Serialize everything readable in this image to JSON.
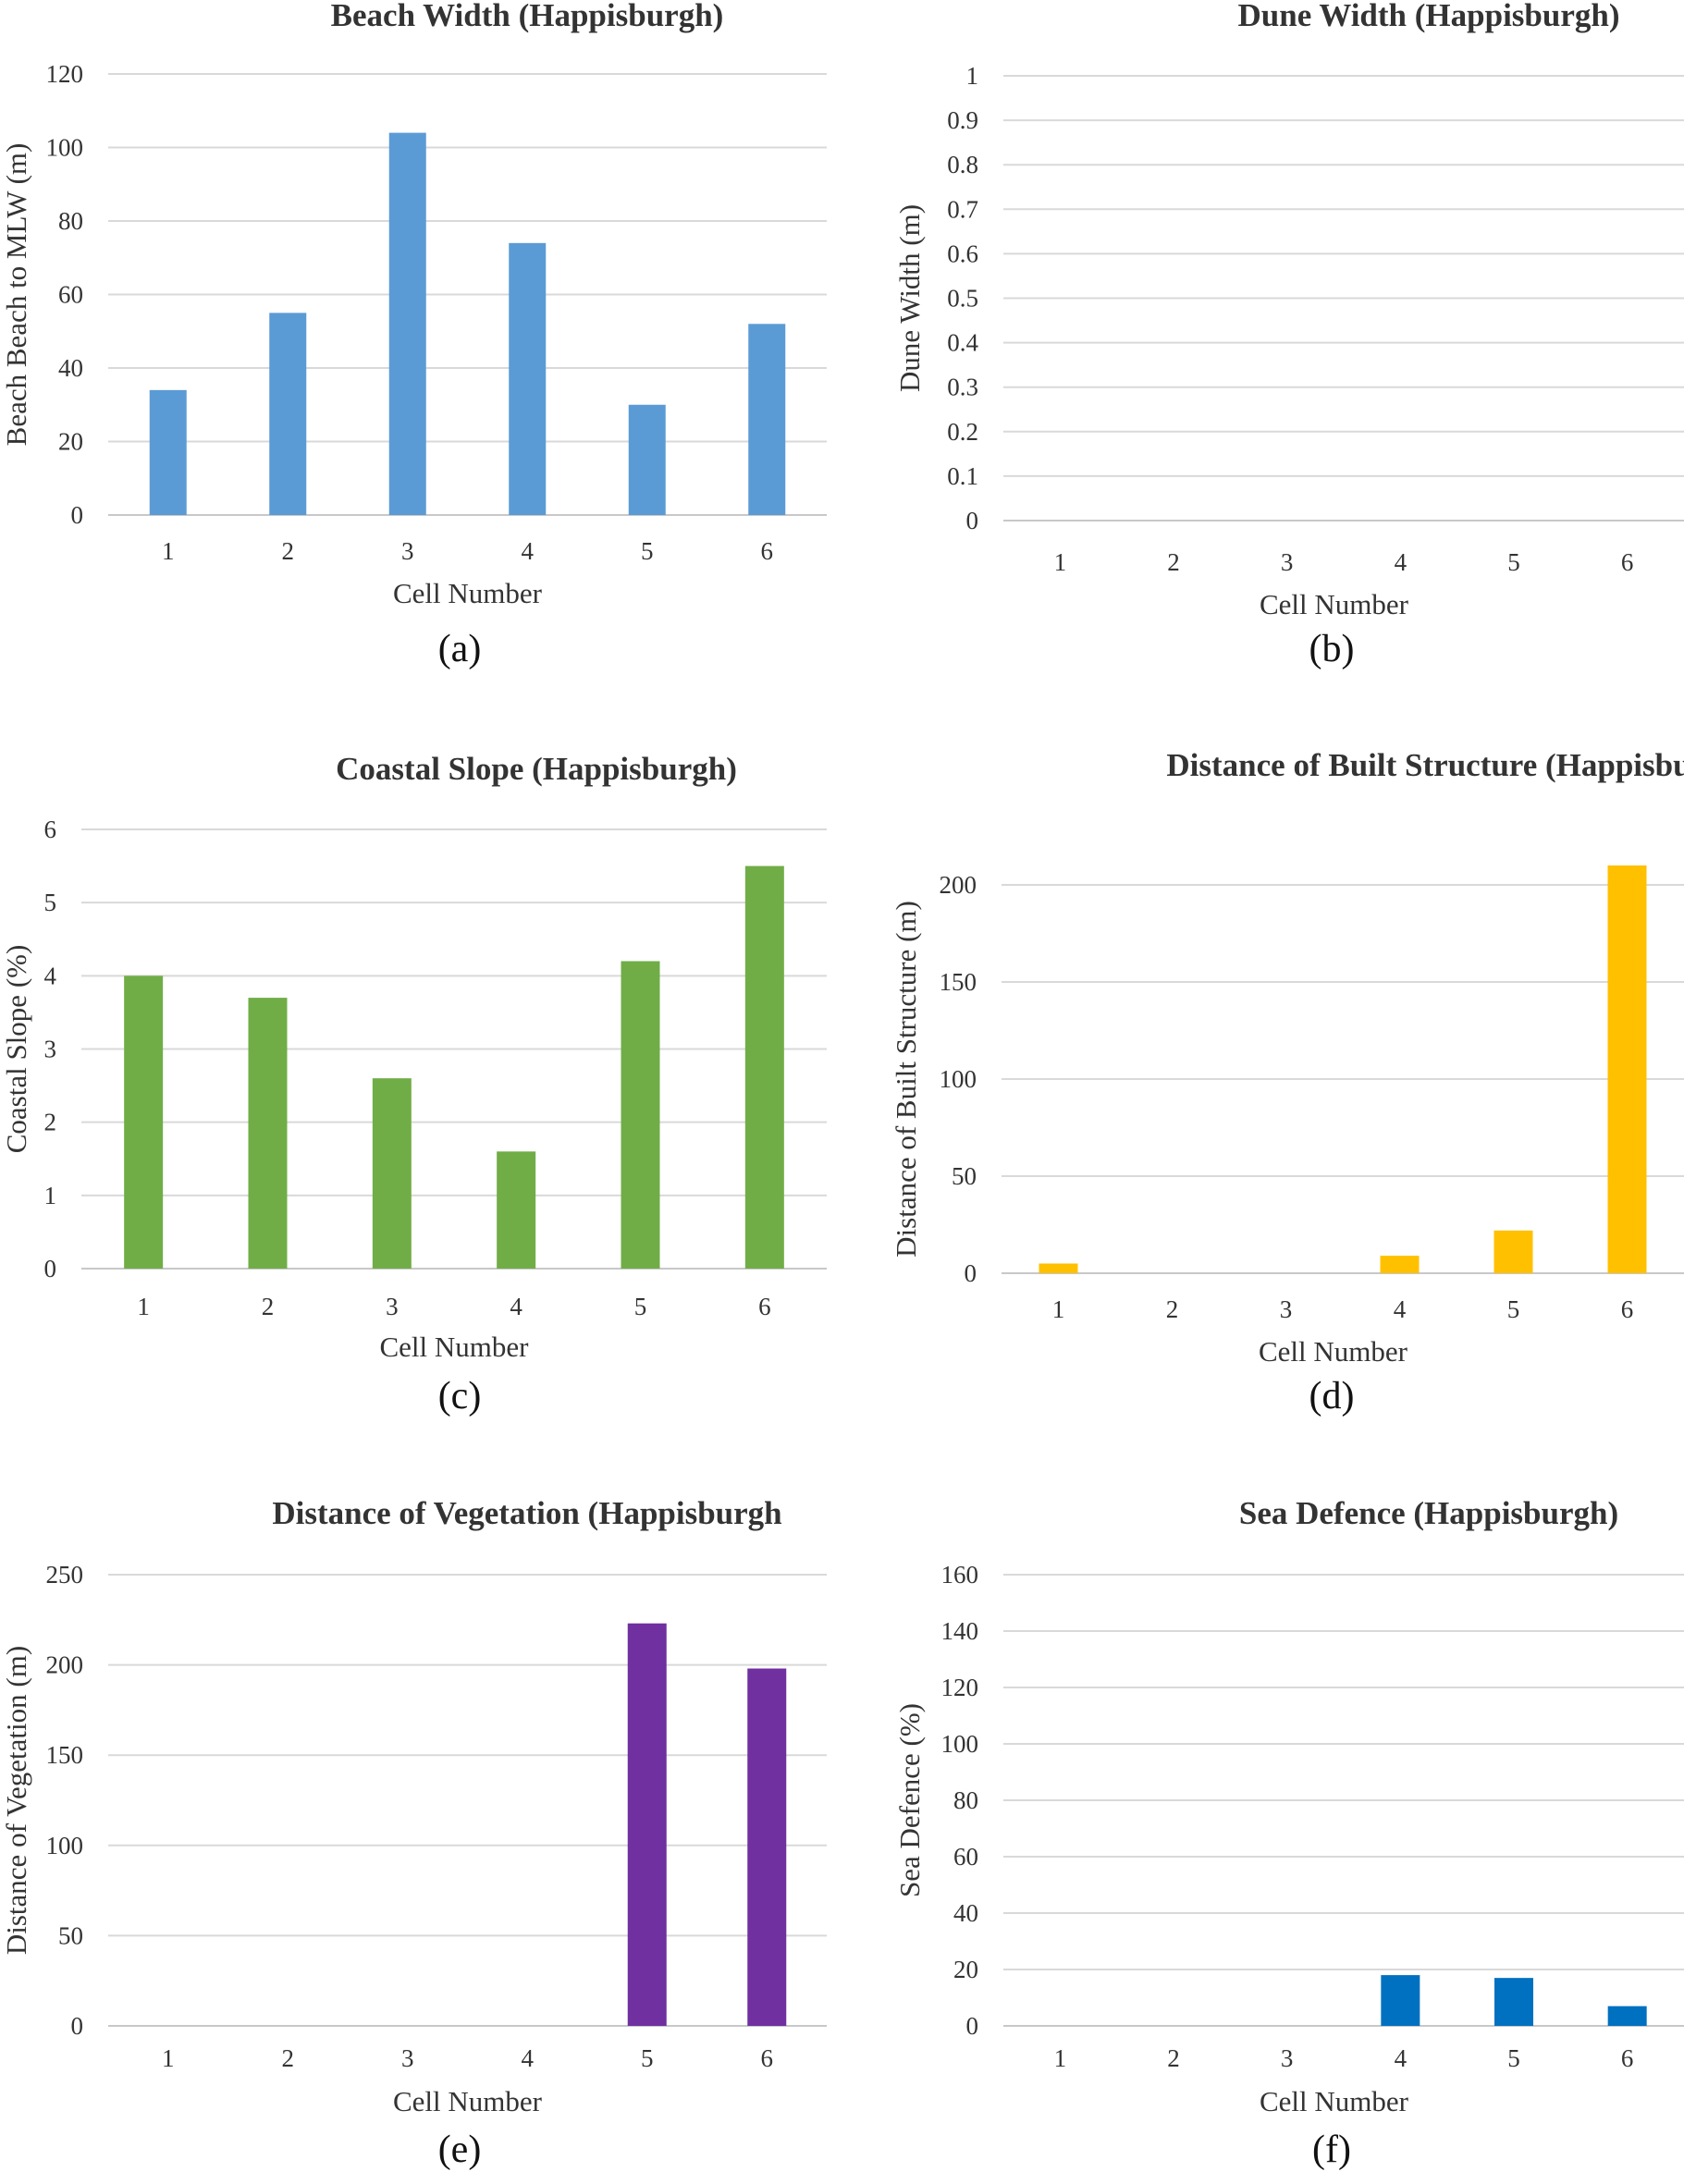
{
  "chart_data": [
    {
      "panel": "(a)",
      "type": "bar",
      "title": "Beach Width (Happisburgh)",
      "xlabel": "Cell Number",
      "ylabel": "Beach Beach to MLW (m)",
      "categories": [
        "1",
        "2",
        "3",
        "4",
        "5",
        "6"
      ],
      "values": [
        34,
        55,
        104,
        74,
        30,
        52
      ],
      "ylim": [
        0,
        120
      ],
      "yticks": [
        "0",
        "20",
        "40",
        "60",
        "80",
        "100",
        "120"
      ],
      "color": "#5b9bd5",
      "grid": true
    },
    {
      "panel": "(b)",
      "type": "bar",
      "title": "Dune Width (Happisburgh)",
      "xlabel": "Cell Number",
      "ylabel": "Dune Width (m)",
      "categories": [
        "1",
        "2",
        "3",
        "4",
        "5",
        "6"
      ],
      "values": [
        0,
        0,
        0,
        0,
        0,
        0
      ],
      "ylim": [
        0,
        1
      ],
      "yticks": [
        "0",
        "0.1",
        "0.2",
        "0.3",
        "0.4",
        "0.5",
        "0.6",
        "0.7",
        "0.8",
        "0.9",
        "1"
      ],
      "color": "#5b9bd5",
      "grid": true
    },
    {
      "panel": "(c)",
      "type": "bar",
      "title": "Coastal Slope (Happisburgh)",
      "xlabel": "Cell Number",
      "ylabel": "Coastal Slope (%)",
      "categories": [
        "1",
        "2",
        "3",
        "4",
        "5",
        "6"
      ],
      "values": [
        4.0,
        3.7,
        2.6,
        1.6,
        4.2,
        5.5
      ],
      "ylim": [
        0,
        6
      ],
      "yticks": [
        "0",
        "1",
        "2",
        "3",
        "4",
        "5",
        "6"
      ],
      "color": "#70ad47",
      "grid": true
    },
    {
      "panel": "(d)",
      "type": "bar",
      "title": "Distance of Built Structure (Happisbu",
      "xlabel": "Cell Number",
      "ylabel": "Distance of Built Structure (m)",
      "categories": [
        "1",
        "2",
        "3",
        "4",
        "5",
        "6"
      ],
      "values": [
        5,
        0,
        0,
        9,
        22,
        210
      ],
      "ylim": [
        0,
        220
      ],
      "yticks": [
        "0",
        "50",
        "100",
        "150",
        "200"
      ],
      "color": "#ffc000",
      "grid": true
    },
    {
      "panel": "(e)",
      "type": "bar",
      "title": "Distance of Vegetation (Happisburgh",
      "xlabel": "Cell Number",
      "ylabel": "Distance of Vegetation (m)",
      "categories": [
        "1",
        "2",
        "3",
        "4",
        "5",
        "6"
      ],
      "values": [
        0,
        0,
        0,
        0,
        223,
        198
      ],
      "ylim": [
        0,
        250
      ],
      "yticks": [
        "0",
        "50",
        "100",
        "150",
        "200",
        "250"
      ],
      "color": "#7030a0",
      "grid": true
    },
    {
      "panel": "(f)",
      "type": "bar",
      "title": "Sea Defence (Happisburgh)",
      "xlabel": "Cell Number",
      "ylabel": "Sea Defence (%)",
      "categories": [
        "1",
        "2",
        "3",
        "4",
        "5",
        "6"
      ],
      "values": [
        0,
        0,
        0,
        18,
        17,
        7
      ],
      "ylim": [
        0,
        160
      ],
      "yticks": [
        "0",
        "20",
        "40",
        "60",
        "80",
        "100",
        "120",
        "140",
        "160"
      ],
      "color": "#0070c0",
      "grid": true
    }
  ]
}
